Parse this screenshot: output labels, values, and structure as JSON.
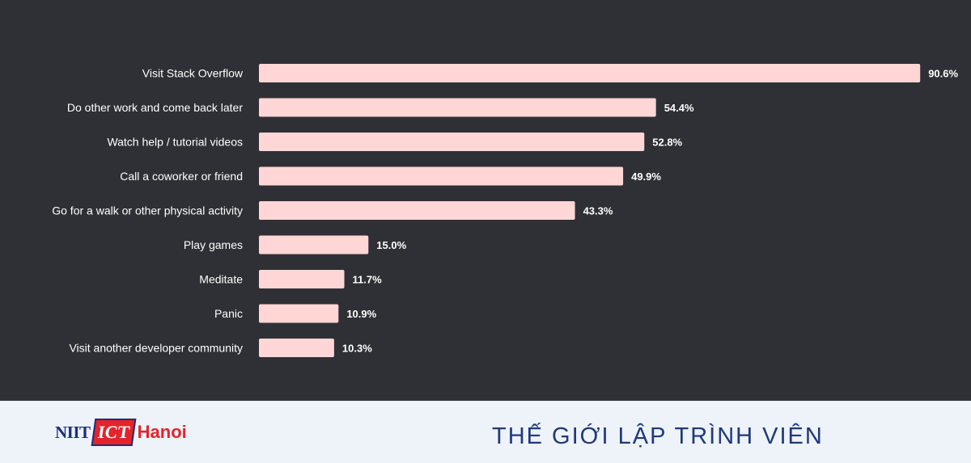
{
  "chart_data": {
    "type": "bar",
    "orientation": "horizontal",
    "categories": [
      "Visit Stack Overflow",
      "Do other work and come back later",
      "Watch help / tutorial videos",
      "Call a coworker or friend",
      "Go for a walk or other physical activity",
      "Play games",
      "Meditate",
      "Panic",
      "Visit another developer community"
    ],
    "values": [
      90.6,
      54.4,
      52.8,
      49.9,
      43.3,
      15.0,
      11.7,
      10.9,
      10.3
    ],
    "value_labels": [
      "90.6%",
      "54.4%",
      "52.8%",
      "49.9%",
      "43.3%",
      "15.0%",
      "11.7%",
      "10.9%",
      "10.3%"
    ],
    "xlim": [
      0,
      100
    ],
    "grid": false,
    "colors": {
      "background": "#2f3035",
      "bar": "#ffd6d6",
      "text": "#ffffff"
    }
  },
  "footer": {
    "logo": {
      "niit": "NIIT",
      "ict": "ICT",
      "hanoi": "Hanoi"
    },
    "tagline": "THẾ GIỚI LẬP TRÌNH VIÊN",
    "colors": {
      "background": "#eef2f9",
      "tagline": "#1e3a7b",
      "logo_blue": "#1a2f7a",
      "logo_red": "#e1252b"
    }
  }
}
